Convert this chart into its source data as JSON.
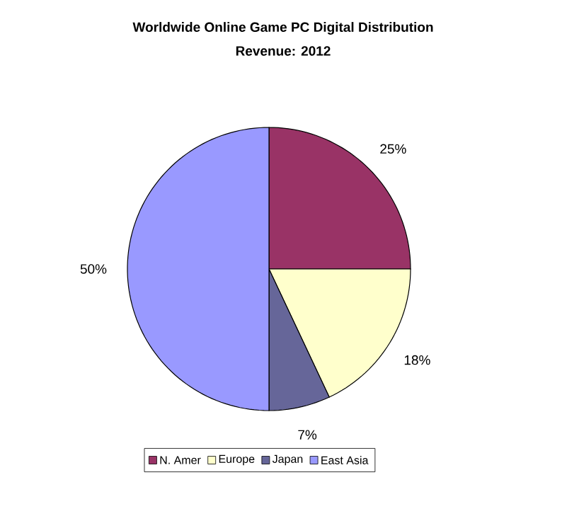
{
  "chart_data": {
    "type": "pie",
    "title": "Worldwide Online Game PC Digital Distribution",
    "subtitle": "Revenue: 2012",
    "categories": [
      "N. Amer",
      "Europe",
      "Japan",
      "East Asia"
    ],
    "values": [
      25,
      18,
      7,
      50
    ],
    "colors": [
      "#993366",
      "#ffffcc",
      "#666699",
      "#9999ff"
    ],
    "value_labels": [
      "25%",
      "18%",
      "7%",
      "50%"
    ],
    "legend": "bottom"
  }
}
